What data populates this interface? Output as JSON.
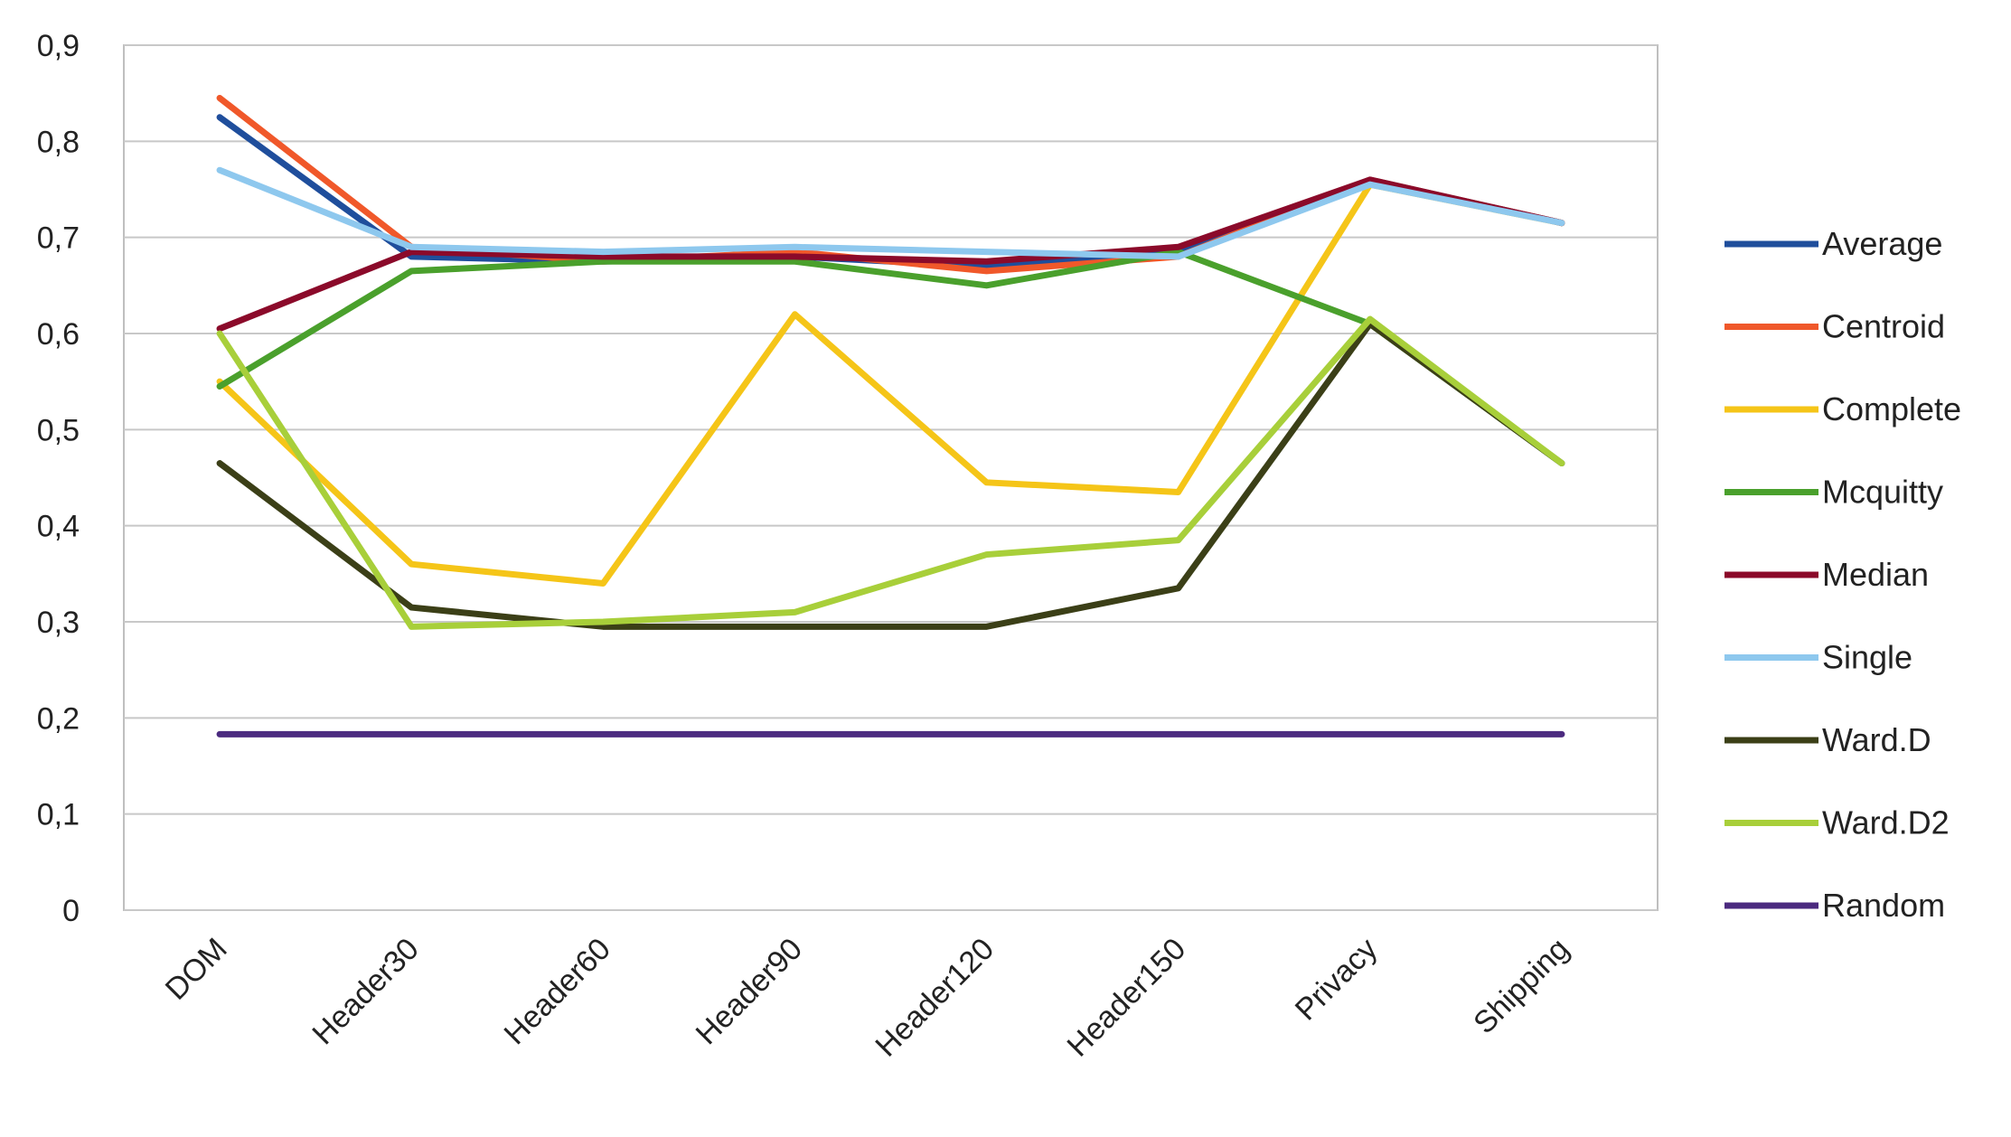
{
  "chart_data": {
    "type": "line",
    "title": "",
    "xlabel": "",
    "ylabel": "",
    "categories": [
      "DOM",
      "Header30",
      "Header60",
      "Header90",
      "Header120",
      "Header150",
      "Privacy",
      "Shipping"
    ],
    "y_tick_labels": [
      "0",
      "0,1",
      "0,2",
      "0,3",
      "0,4",
      "0,5",
      "0,6",
      "0,7",
      "0,8",
      "0,9"
    ],
    "ylim": [
      0,
      0.9
    ],
    "grid": true,
    "legend_position": "right",
    "series": [
      {
        "name": "Average",
        "color": "#1f4e9c",
        "values": [
          0.825,
          0.68,
          0.675,
          0.68,
          0.67,
          0.685,
          0.76,
          0.715
        ]
      },
      {
        "name": "Centroid",
        "color": "#f0582a",
        "values": [
          0.845,
          0.69,
          0.675,
          0.685,
          0.665,
          0.68,
          0.76,
          0.715
        ]
      },
      {
        "name": "Complete",
        "color": "#f5c518",
        "values": [
          0.55,
          0.36,
          0.34,
          0.62,
          0.445,
          0.435,
          0.755,
          0.715
        ]
      },
      {
        "name": "Mcquitty",
        "color": "#4aa02c",
        "values": [
          0.545,
          0.665,
          0.675,
          0.675,
          0.65,
          0.685,
          0.61,
          0.465
        ]
      },
      {
        "name": "Median",
        "color": "#8b0a2a",
        "values": [
          0.605,
          0.685,
          0.68,
          0.68,
          0.675,
          0.69,
          0.76,
          0.715
        ]
      },
      {
        "name": "Single",
        "color": "#8ec8ee",
        "values": [
          0.77,
          0.69,
          0.685,
          0.69,
          0.685,
          0.68,
          0.755,
          0.715
        ]
      },
      {
        "name": "Ward.D",
        "color": "#3b3f17",
        "values": [
          0.465,
          0.315,
          0.295,
          0.295,
          0.295,
          0.335,
          0.61,
          0.465
        ]
      },
      {
        "name": "Ward.D2",
        "color": "#a8cf3a",
        "values": [
          0.6,
          0.295,
          0.3,
          0.31,
          0.37,
          0.385,
          0.615,
          0.465
        ]
      },
      {
        "name": "Random",
        "color": "#4b2a7f",
        "values": [
          0.183,
          0.183,
          0.183,
          0.183,
          0.183,
          0.183,
          0.183,
          0.183
        ]
      }
    ]
  }
}
